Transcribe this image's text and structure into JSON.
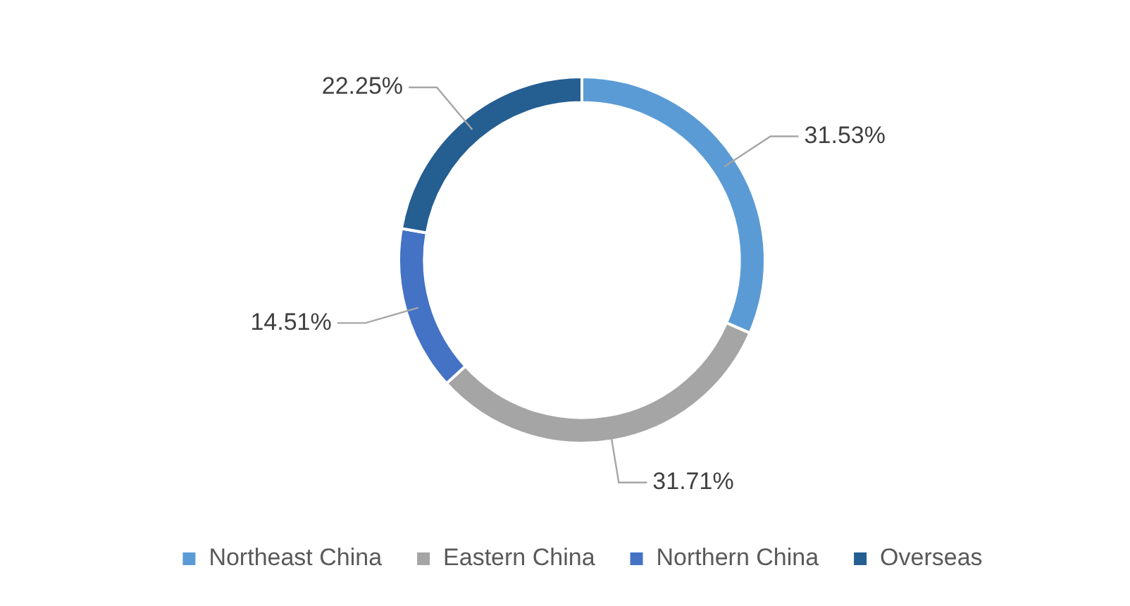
{
  "chart_data": {
    "type": "donut",
    "categories": [
      "Northeast China",
      "Eastern China",
      "Northern China",
      "Overseas"
    ],
    "values": [
      31.53,
      31.71,
      14.51,
      22.25
    ],
    "value_labels": [
      "31.53%",
      "31.71%",
      "14.51%",
      "22.25%"
    ],
    "colors": [
      "#5b9bd5",
      "#a5a5a5",
      "#4472c4",
      "#255e91"
    ],
    "legend": "bottom"
  }
}
